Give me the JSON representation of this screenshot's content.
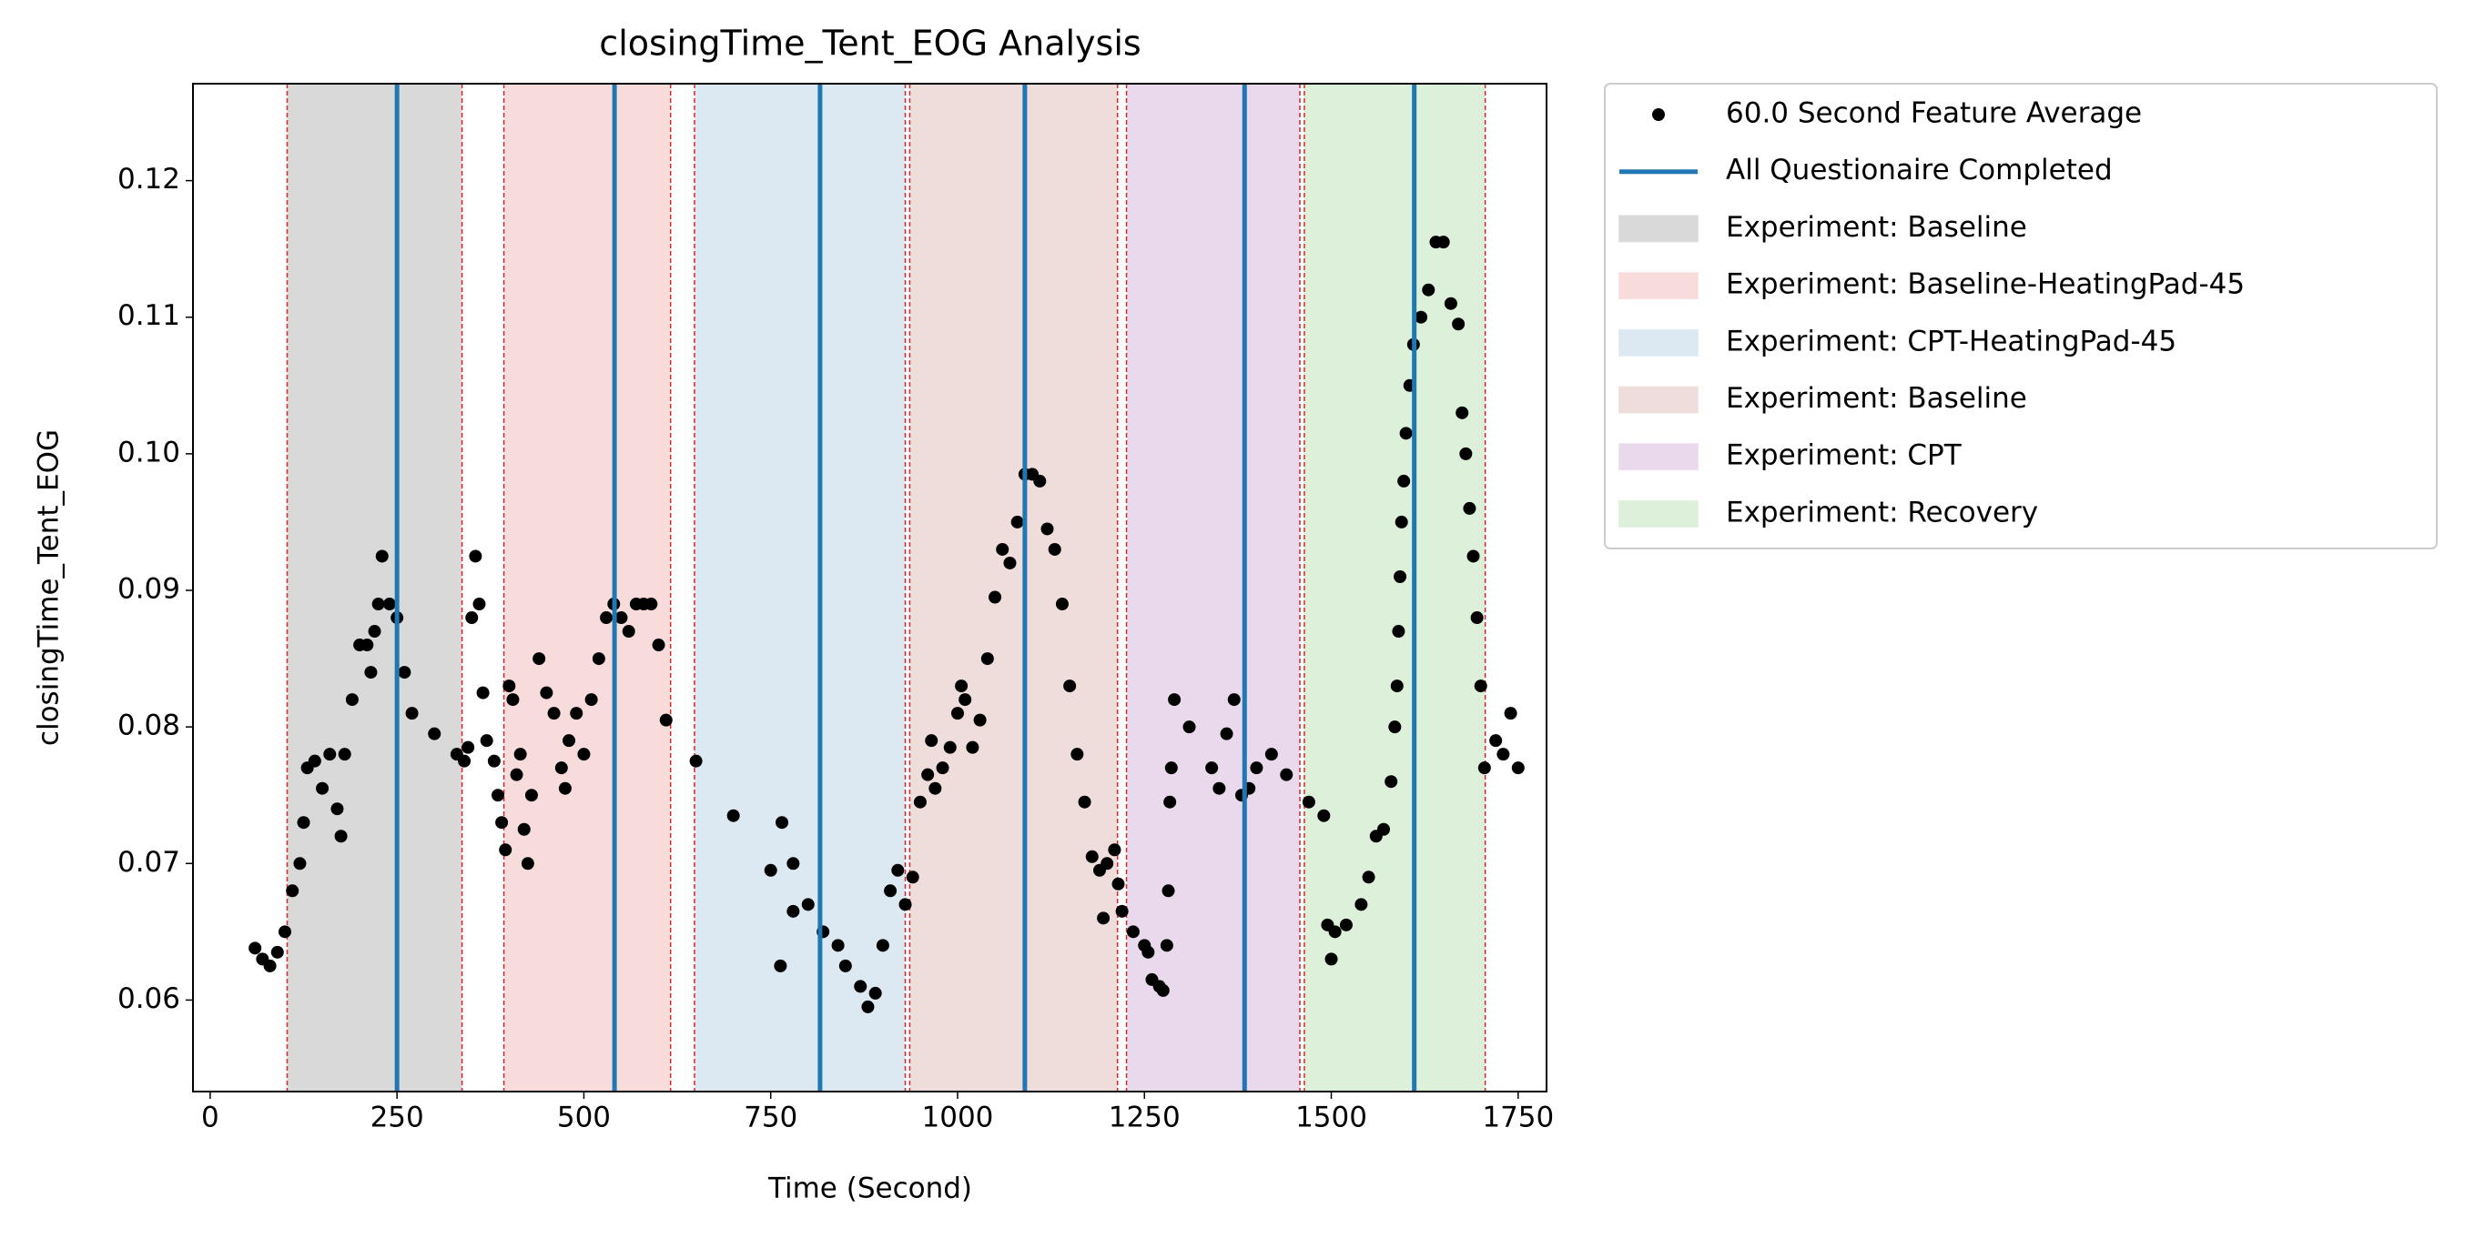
{
  "chart_data": {
    "type": "scatter",
    "title": "closingTime_Tent_EOG Analysis",
    "xlabel": "Time (Second)",
    "ylabel": "closingTime_Tent_EOG",
    "xlim": [
      -23,
      1788
    ],
    "ylim": [
      0.0533,
      0.1271
    ],
    "xticks": [
      0,
      250,
      500,
      750,
      1000,
      1250,
      1500,
      1750
    ],
    "yticks": [
      0.06,
      0.07,
      0.08,
      0.09,
      {
        "value": 0.1,
        "label": "0.10"
      },
      0.11,
      0.12
    ],
    "x": [
      60,
      70,
      80,
      90,
      100,
      110,
      120,
      125,
      130,
      140,
      150,
      160,
      170,
      175,
      180,
      190,
      200,
      210,
      215,
      220,
      225,
      230,
      240,
      250,
      260,
      270,
      300,
      330,
      340,
      345,
      350,
      355,
      360,
      365,
      370,
      380,
      385,
      390,
      395,
      400,
      405,
      410,
      415,
      420,
      425,
      430,
      440,
      450,
      460,
      470,
      475,
      480,
      490,
      500,
      510,
      520,
      530,
      540,
      550,
      560,
      570,
      580,
      590,
      600,
      610,
      650,
      700,
      750,
      780,
      763,
      765,
      780,
      800,
      820,
      840,
      850,
      870,
      880,
      890,
      900,
      910,
      920,
      930,
      940,
      950,
      960,
      965,
      970,
      980,
      990,
      1000,
      1005,
      1010,
      1020,
      1030,
      1040,
      1050,
      1060,
      1070,
      1080,
      1090,
      1100,
      1110,
      1120,
      1130,
      1140,
      1150,
      1160,
      1170,
      1180,
      1190,
      1195,
      1200,
      1210,
      1215,
      1220,
      1235,
      1250,
      1255,
      1260,
      1270,
      1275,
      1280,
      1282,
      1284,
      1286,
      1290,
      1310,
      1340,
      1350,
      1360,
      1370,
      1380,
      1390,
      1400,
      1420,
      1440,
      1470,
      1490,
      1495,
      1500,
      1505,
      1520,
      1540,
      1550,
      1560,
      1570,
      1580,
      1585,
      1588,
      1590,
      1592,
      1594,
      1597,
      1600,
      1605,
      1610,
      1620,
      1630,
      1640,
      1650,
      1660,
      1670,
      1675,
      1680,
      1685,
      1690,
      1695,
      1700,
      1705,
      1720,
      1730,
      1740,
      1750
    ],
    "series": [
      {
        "name": "60.0 Second Feature Average",
        "color": "#000000",
        "values": [
          0.0638,
          0.063,
          0.0625,
          0.0635,
          0.065,
          0.068,
          0.07,
          0.073,
          0.077,
          0.0775,
          0.0755,
          0.078,
          0.074,
          0.072,
          0.078,
          0.082,
          0.086,
          0.086,
          0.084,
          0.087,
          0.089,
          0.0925,
          0.089,
          0.088,
          0.084,
          0.081,
          0.0795,
          0.078,
          0.0775,
          0.0785,
          0.088,
          0.0925,
          0.089,
          0.0825,
          0.079,
          0.0775,
          0.075,
          0.073,
          0.071,
          0.083,
          0.082,
          0.0765,
          0.078,
          0.0725,
          0.07,
          0.075,
          0.085,
          0.0825,
          0.081,
          0.077,
          0.0755,
          0.079,
          0.081,
          0.078,
          0.082,
          0.085,
          0.088,
          0.089,
          0.088,
          0.087,
          0.089,
          0.089,
          0.089,
          0.086,
          0.0805,
          0.0775,
          0.0735,
          0.0695,
          0.0665,
          0.0625,
          0.073,
          0.07,
          0.067,
          0.065,
          0.064,
          0.0625,
          0.061,
          0.0595,
          0.0605,
          0.064,
          0.068,
          0.0695,
          0.067,
          0.069,
          0.0745,
          0.0765,
          0.079,
          0.0755,
          0.077,
          0.0785,
          0.081,
          0.083,
          0.082,
          0.0785,
          0.0805,
          0.085,
          0.0895,
          0.093,
          0.092,
          0.095,
          0.0985,
          0.0985,
          0.098,
          0.0945,
          0.093,
          0.089,
          0.083,
          0.078,
          0.0745,
          0.0705,
          0.0695,
          0.066,
          0.07,
          0.071,
          0.0685,
          0.0665,
          0.065,
          0.064,
          0.0635,
          0.0615,
          0.061,
          0.0607,
          0.064,
          0.068,
          0.0745,
          0.077,
          0.082,
          0.08,
          0.077,
          0.0755,
          0.0795,
          0.082,
          0.075,
          0.0755,
          0.077,
          0.078,
          0.0765,
          0.0745,
          0.0735,
          0.0655,
          0.063,
          0.065,
          0.0655,
          0.067,
          0.069,
          0.072,
          0.0725,
          0.076,
          0.08,
          0.083,
          0.087,
          0.091,
          0.095,
          0.098,
          0.1015,
          0.105,
          0.108,
          0.11,
          0.112,
          0.1155,
          0.1155,
          0.111,
          0.1095,
          0.103,
          0.1,
          0.096,
          0.0925,
          0.088,
          0.083,
          0.077,
          0.079,
          0.078,
          0.081,
          0.077
        ]
      }
    ],
    "vlines": {
      "name": "All Questionaire Completed",
      "color": "#1f77b4",
      "x": [
        250,
        541,
        816,
        1090,
        1384,
        1611
      ]
    },
    "span_edge_color": "#d62728",
    "spans": [
      {
        "name": "Experiment: Baseline",
        "color": "#d9d9d9",
        "start": 103,
        "end": 337
      },
      {
        "name": "Experiment: Baseline-HeatingPad-45",
        "color": "#f8dcdc",
        "start": 393,
        "end": 616
      },
      {
        "name": "Experiment: CPT-HeatingPad-45",
        "color": "#dce9f3",
        "start": 648,
        "end": 930
      },
      {
        "name": "Experiment: Baseline",
        "color": "#eeddda",
        "start": 936,
        "end": 1214
      },
      {
        "name": "Experiment: CPT",
        "color": "#ead9ec",
        "start": 1226,
        "end": 1458
      },
      {
        "name": "Experiment: Recovery",
        "color": "#ddf0da",
        "start": 1464,
        "end": 1706
      }
    ]
  }
}
